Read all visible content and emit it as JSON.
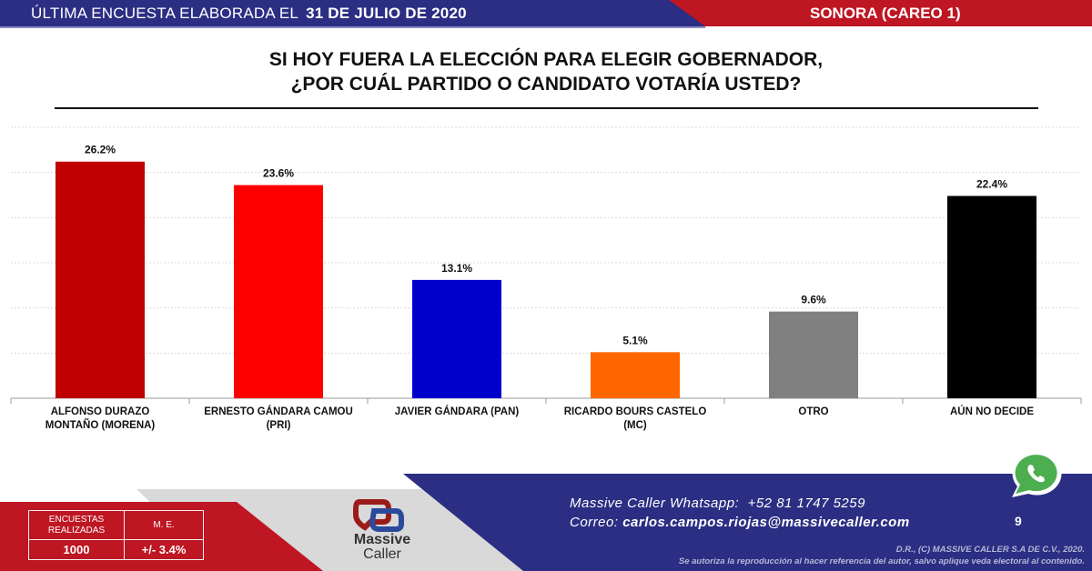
{
  "header": {
    "prefix": "ÚLTIMA ENCUESTA ELABORADA EL",
    "date": "31 DE JULIO DE 2020",
    "region": "SONORA (CAREO 1)"
  },
  "question": {
    "line1": "SI HOY FUERA LA ELECCIÓN PARA ELEGIR GOBERNADOR,",
    "line2": "¿POR CUÁL PARTIDO O CANDIDATO VOTARÍA USTED?"
  },
  "chart_data": {
    "type": "bar",
    "title": "SI HOY FUERA LA ELECCIÓN PARA ELEGIR GOBERNADOR, ¿POR CUÁL PARTIDO O CANDIDATO VOTARÍA USTED?",
    "categories": [
      [
        "ALFONSO DURAZO",
        "MONTAÑO (MORENA)"
      ],
      [
        "ERNESTO GÁNDARA CAMOU",
        "(PRI)"
      ],
      [
        "JAVIER GÁNDARA (PAN)"
      ],
      [
        "RICARDO BOURS CASTELO",
        "(MC)"
      ],
      [
        "OTRO"
      ],
      [
        "AÚN NO DECIDE"
      ]
    ],
    "values": [
      26.2,
      23.6,
      13.1,
      5.1,
      9.6,
      22.4
    ],
    "labels": [
      "26.2%",
      "23.6%",
      "13.1%",
      "5.1%",
      "9.6%",
      "22.4%"
    ],
    "colors": [
      "#c00000",
      "#ff0000",
      "#0000cc",
      "#ff6600",
      "#808080",
      "#000000"
    ],
    "ylim": [
      0,
      30
    ],
    "grid": true,
    "xlabel": "",
    "ylabel": ""
  },
  "stats": {
    "h1a": "ENCUESTAS",
    "h1b": "REALIZADAS",
    "h2": "M. E.",
    "v1": "1000",
    "v2": "+/- 3.4%"
  },
  "logo": {
    "line1": "Massive",
    "line2": "Caller"
  },
  "contact": {
    "wa_label": "Massive Caller Whatsapp:",
    "wa_number": "+52 81 1747 5259",
    "mail_label": "Correo:",
    "mail": "carlos.campos.riojas@massivecaller.com"
  },
  "page": "9",
  "copyright": {
    "line1": "D.R., (C) MASSIVE CALLER S.A DE C.V., 2020.",
    "line2": "Se autoriza la reproducción al hacer referencia del autor, salvo aplique veda electoral al contenido."
  }
}
